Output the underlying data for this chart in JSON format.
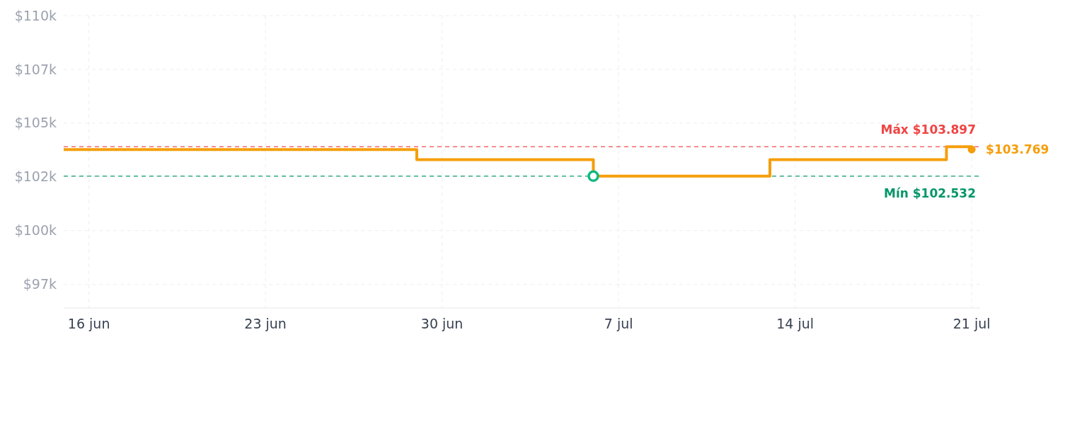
{
  "chart_data": {
    "type": "step",
    "xlim": [
      "--06-15",
      "--07-21T08:00"
    ],
    "ylim": [
      96400,
      110000
    ],
    "xticks": [
      {
        "value": "--06-16",
        "label": "16 jun"
      },
      {
        "value": "--06-23",
        "label": "23 jun"
      },
      {
        "value": "--06-30",
        "label": "30 jun"
      },
      {
        "value": "--07-07",
        "label": "7 jul"
      },
      {
        "value": "--07-14",
        "label": "14 jul"
      },
      {
        "value": "--07-21",
        "label": "21 jul"
      }
    ],
    "yticks": [
      {
        "value": 97500,
        "label": "$97k"
      },
      {
        "value": 100000,
        "label": "$100k"
      },
      {
        "value": 102500,
        "label": "$102k"
      },
      {
        "value": 105000,
        "label": "$105k"
      },
      {
        "value": 107500,
        "label": "$107k"
      },
      {
        "value": 110000,
        "label": "$110k"
      }
    ],
    "grid": true,
    "series": [
      {
        "color": "#f59e0b",
        "marker": "none",
        "x": [
          "--06-15",
          "--06-29",
          "--07-06",
          "--07-13",
          "--07-20",
          "--07-21"
        ],
        "values": [
          103769,
          103300,
          102532,
          103300,
          103897,
          103769
        ]
      },
      {
        "type": "scatter",
        "color": "#10b981",
        "marker": "circle",
        "x": [
          "--07-06"
        ],
        "values": [
          102532
        ]
      },
      {
        "type": "scatter",
        "color": "#f59e0b",
        "marker": "circle",
        "x": [
          "--07-21"
        ],
        "values": [
          103769
        ]
      }
    ],
    "ref_lines": [
      {
        "axis": "y",
        "value": 103897,
        "label": "Máx $103.897",
        "color": "#ef4444",
        "line_style": "dashed"
      },
      {
        "axis": "y",
        "value": 102532,
        "label": "Mín $102.532",
        "color": "#059669",
        "line_style": "dashed"
      }
    ],
    "annotations": [
      {
        "text": "$103.769",
        "x": "--07-21",
        "y": 103769
      }
    ]
  }
}
